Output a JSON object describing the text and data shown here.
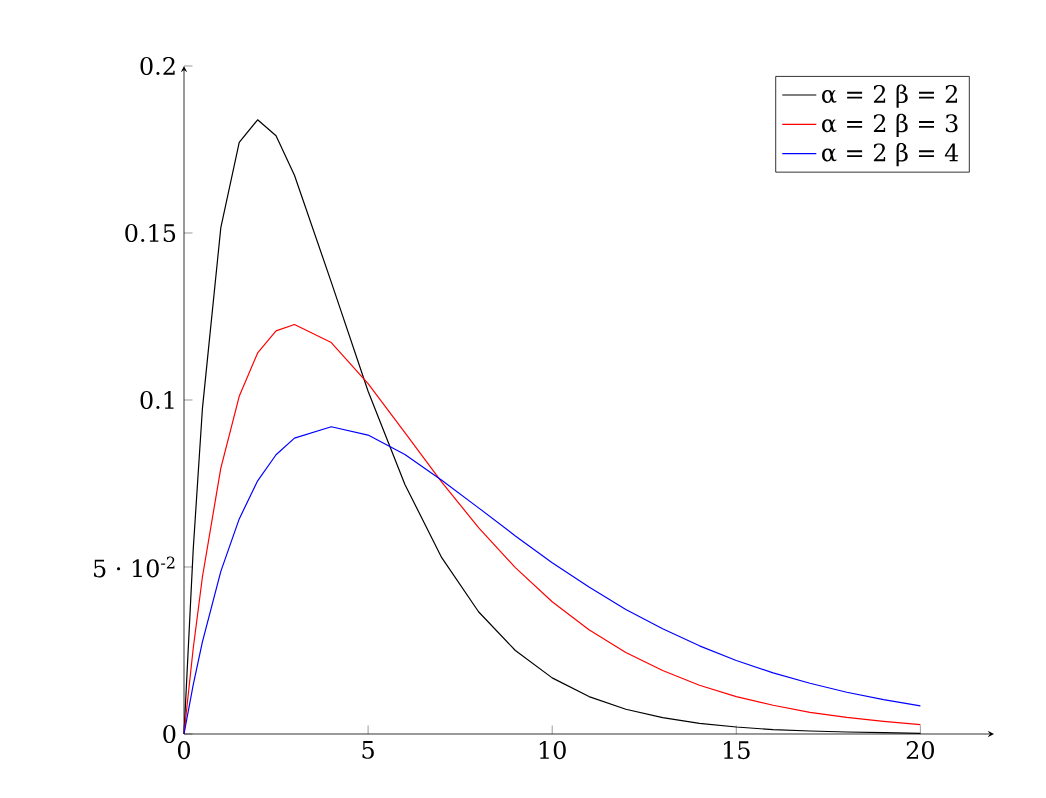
{
  "chart_data": {
    "type": "line",
    "x": [
      0,
      0.25,
      0.5,
      1,
      1.5,
      2,
      2.5,
      3,
      4,
      5,
      6,
      7,
      8,
      9,
      10,
      11,
      12,
      13,
      14,
      15,
      16,
      17,
      18,
      19,
      20
    ],
    "series": [
      {
        "name": "α = 2    β = 2",
        "color": "#000000",
        "values": [
          0,
          0.0552,
          0.0974,
          0.1516,
          0.1771,
          0.1839,
          0.1791,
          0.1673,
          0.1353,
          0.1026,
          0.0747,
          0.0528,
          0.0366,
          0.025,
          0.0168,
          0.0112,
          0.0074,
          0.0049,
          0.0032,
          0.0021,
          0.0013,
          0.0009,
          0.0006,
          0.0004,
          0.0002
        ]
      },
      {
        "name": "α = 2    β = 3",
        "color": "#ff0000",
        "values": [
          0,
          0.0256,
          0.047,
          0.0796,
          0.1011,
          0.1141,
          0.1207,
          0.1226,
          0.1172,
          0.1049,
          0.0902,
          0.0754,
          0.0618,
          0.0498,
          0.0396,
          0.0312,
          0.0244,
          0.019,
          0.0146,
          0.0112,
          0.0086,
          0.0065,
          0.005,
          0.0038,
          0.0028
        ]
      },
      {
        "name": "α = 2    β = 4",
        "color": "#0000ff",
        "values": [
          0,
          0.0147,
          0.0276,
          0.0487,
          0.0644,
          0.0758,
          0.0836,
          0.0886,
          0.092,
          0.0895,
          0.0837,
          0.076,
          0.0677,
          0.0593,
          0.0513,
          0.044,
          0.0373,
          0.0315,
          0.0264,
          0.022,
          0.0183,
          0.0152,
          0.0125,
          0.0103,
          0.0084
        ]
      }
    ],
    "xlim": [
      0,
      22
    ],
    "ylim": [
      0,
      0.2
    ],
    "xticks": [
      0,
      5,
      10,
      15,
      20
    ],
    "yticks": [
      0,
      {
        "value": 0.05,
        "label": "5 · 10$^{-2}$"
      },
      0.1,
      0.15,
      0.2
    ],
    "legend": "top right",
    "marker": "none",
    "line_style": "solid",
    "grid": false
  }
}
